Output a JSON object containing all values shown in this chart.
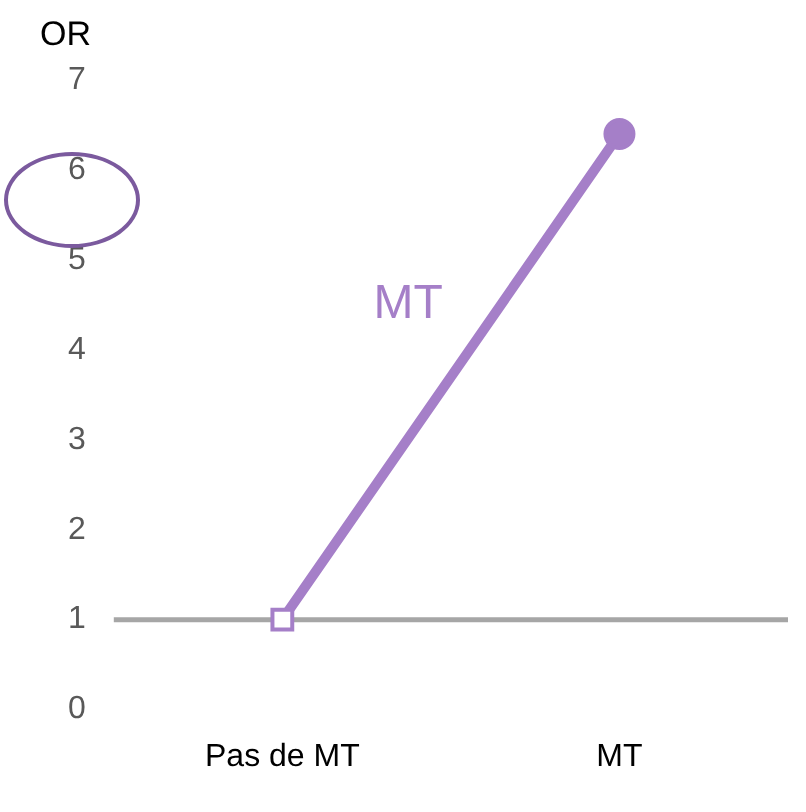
{
  "chart_data": {
    "type": "line",
    "ylabel": "OR",
    "categories": [
      "Pas de MT",
      "MT"
    ],
    "series": [
      {
        "name": "MT",
        "color": "#a57fc8",
        "values": [
          1,
          6.4
        ],
        "marker": "none"
      },
      {
        "type": "scatter",
        "color": "#a57fc8",
        "x": [
          "Pas de MT"
        ],
        "values": [
          1
        ],
        "marker": "square"
      },
      {
        "type": "scatter",
        "color": "#a57fc8",
        "x": [
          "MT"
        ],
        "values": [
          6.4
        ],
        "marker": "circle"
      }
    ],
    "ylim": [
      0,
      7
    ],
    "yticks": [
      0,
      1,
      2,
      3,
      4,
      5,
      6,
      7
    ],
    "grid": false,
    "legend": false,
    "ref_lines": [
      {
        "axis": "y",
        "value": 1,
        "color": "#a6a6a6"
      }
    ]
  }
}
